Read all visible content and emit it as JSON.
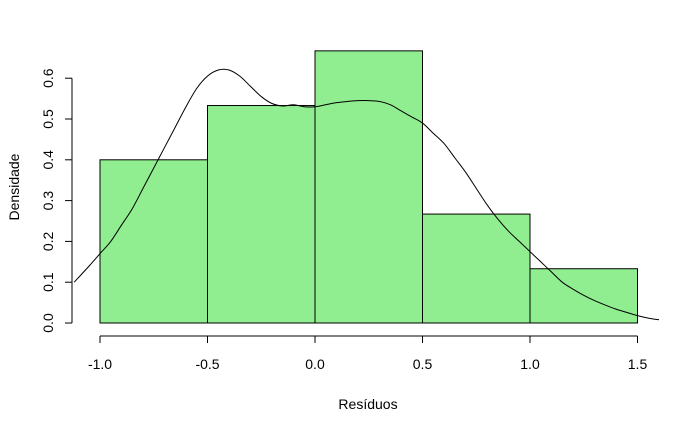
{
  "chart_data": {
    "type": "bar",
    "xlabel": "Resíduos",
    "ylabel": "Densidade",
    "bins": [
      {
        "start": -1.0,
        "end": -0.5,
        "density": 0.4
      },
      {
        "start": -0.5,
        "end": 0.0,
        "density": 0.533
      },
      {
        "start": 0.0,
        "end": 0.5,
        "density": 0.667
      },
      {
        "start": 0.5,
        "end": 1.0,
        "density": 0.267
      },
      {
        "start": 1.0,
        "end": 1.5,
        "density": 0.133
      }
    ],
    "x_ticks": [
      {
        "value": -1.0,
        "label": "-1.0"
      },
      {
        "value": -0.5,
        "label": "-0.5"
      },
      {
        "value": 0.0,
        "label": "0.0"
      },
      {
        "value": 0.5,
        "label": "0.5"
      },
      {
        "value": 1.0,
        "label": "1.0"
      },
      {
        "value": 1.5,
        "label": "1.5"
      }
    ],
    "y_ticks": [
      {
        "value": 0.0,
        "label": "0.0"
      },
      {
        "value": 0.1,
        "label": "0.1"
      },
      {
        "value": 0.2,
        "label": "0.2"
      },
      {
        "value": 0.3,
        "label": "0.3"
      },
      {
        "value": 0.4,
        "label": "0.4"
      },
      {
        "value": 0.5,
        "label": "0.5"
      },
      {
        "value": 0.6,
        "label": "0.6"
      }
    ],
    "density_curve": {
      "x": [
        -1.12,
        -1.05,
        -1.0,
        -0.95,
        -0.9,
        -0.85,
        -0.8,
        -0.75,
        -0.7,
        -0.65,
        -0.6,
        -0.55,
        -0.5,
        -0.45,
        -0.4,
        -0.35,
        -0.3,
        -0.25,
        -0.2,
        -0.15,
        -0.1,
        -0.05,
        0.0,
        0.05,
        0.1,
        0.15,
        0.2,
        0.25,
        0.3,
        0.35,
        0.4,
        0.45,
        0.5,
        0.55,
        0.6,
        0.65,
        0.7,
        0.75,
        0.8,
        0.85,
        0.9,
        0.95,
        1.0,
        1.05,
        1.1,
        1.15,
        1.2,
        1.25,
        1.3,
        1.35,
        1.4,
        1.45,
        1.5,
        1.55,
        1.6
      ],
      "y": [
        0.1,
        0.14,
        0.17,
        0.2,
        0.24,
        0.28,
        0.33,
        0.38,
        0.43,
        0.48,
        0.53,
        0.575,
        0.605,
        0.62,
        0.62,
        0.605,
        0.58,
        0.555,
        0.538,
        0.532,
        0.535,
        0.53,
        0.53,
        0.535,
        0.54,
        0.543,
        0.545,
        0.545,
        0.543,
        0.535,
        0.52,
        0.505,
        0.49,
        0.465,
        0.44,
        0.405,
        0.37,
        0.33,
        0.29,
        0.255,
        0.225,
        0.2,
        0.175,
        0.15,
        0.125,
        0.1,
        0.083,
        0.068,
        0.055,
        0.044,
        0.034,
        0.026,
        0.018,
        0.012,
        0.008
      ]
    },
    "xlim": [
      -1.12,
      1.6
    ],
    "ylim": [
      0,
      0.667
    ]
  }
}
